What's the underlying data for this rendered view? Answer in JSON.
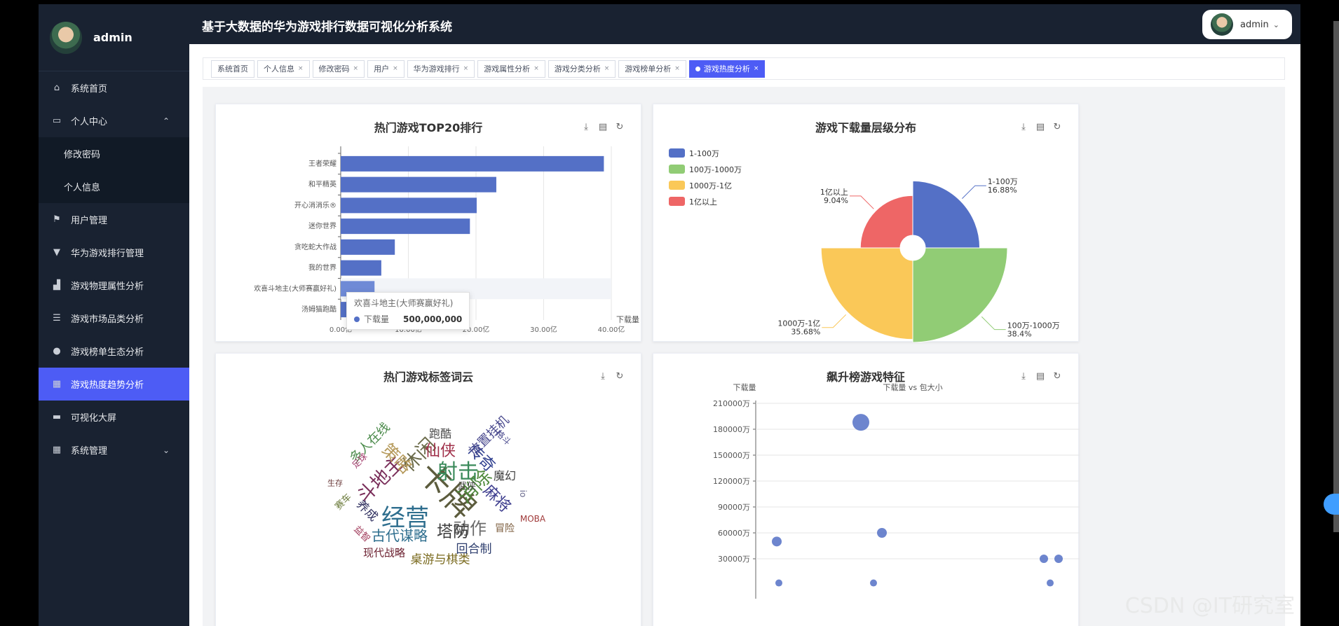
{
  "sidebar": {
    "user": "admin",
    "items": [
      {
        "label": "系统首页",
        "icon": "home-icon",
        "glyph": "⌂"
      },
      {
        "label": "个人中心",
        "icon": "folder-icon",
        "glyph": "▭",
        "arrow": "⌃"
      },
      {
        "label": "修改密码",
        "sub": true
      },
      {
        "label": "个人信息",
        "sub": true
      },
      {
        "label": "用户管理",
        "icon": "flag-icon",
        "glyph": "⚑"
      },
      {
        "label": "华为游戏排行管理",
        "icon": "stamp-icon",
        "glyph": "▼"
      },
      {
        "label": "游戏物理属性分析",
        "icon": "thumb-icon",
        "glyph": "▟"
      },
      {
        "label": "游戏市场品类分析",
        "icon": "list-icon",
        "glyph": "☰"
      },
      {
        "label": "游戏榜单生态分析",
        "icon": "user-icon",
        "glyph": "●"
      },
      {
        "label": "游戏热度趋势分析",
        "icon": "grid-icon",
        "glyph": "▦",
        "active": true
      },
      {
        "label": "可视化大屏",
        "icon": "screen-icon",
        "glyph": "▬"
      },
      {
        "label": "系统管理",
        "icon": "grid-icon",
        "glyph": "▦",
        "arrow": "⌄"
      }
    ]
  },
  "header": {
    "title": "基于大数据的华为游戏排行数据可视化分析系统",
    "user": "admin",
    "arrow": "⌄"
  },
  "tabs": [
    {
      "label": "系统首页",
      "close": ""
    },
    {
      "label": "个人信息",
      "close": "×"
    },
    {
      "label": "修改密码",
      "close": "×"
    },
    {
      "label": "用户",
      "close": "×"
    },
    {
      "label": "华为游戏排行",
      "close": "×"
    },
    {
      "label": "游戏属性分析",
      "close": "×"
    },
    {
      "label": "游戏分类分析",
      "close": "×"
    },
    {
      "label": "游戏榜单分析",
      "close": "×"
    },
    {
      "label": "游戏热度分析",
      "close": "×",
      "active": true
    }
  ],
  "tools": {
    "download": "⤓",
    "data": "▤",
    "refresh": "↻"
  },
  "watermark": "CSDN @IT研究室",
  "charts": {
    "top20": {
      "title": "热门游戏TOP20排行",
      "axis_name": "下载量",
      "tooltip": {
        "title": "欢喜斗地主(大师赛赢好礼)",
        "series": "下载量",
        "value": "500,000,000"
      }
    },
    "pie": {
      "title": "游戏下载量层级分布"
    },
    "wordcloud": {
      "title": "热门游戏标签词云"
    },
    "scatter": {
      "title": "飙升榜游戏特征",
      "yname": "下载量",
      "subtitle": "下载量 vs 包大小"
    }
  },
  "chart_data": [
    {
      "type": "bar",
      "orientation": "horizontal",
      "title": "热门游戏TOP20排行",
      "categories": [
        "王者荣耀",
        "和平精英",
        "开心消消乐®",
        "迷你世界",
        "贪吃蛇大作战",
        "我的世界",
        "欢喜斗地主(大师赛赢好礼)",
        "汤姆猫跑酷"
      ],
      "values": [
        38.9,
        23.0,
        20.1,
        19.1,
        8.0,
        6.0,
        5.0,
        4.0
      ],
      "xlabel": "下载量",
      "xticks": [
        "0.00亿",
        "10.00亿",
        "20.00亿",
        "30.00亿",
        "40.00亿"
      ],
      "xlim": [
        0,
        40
      ],
      "highlight": "欢喜斗地主(大师赛赢好礼)",
      "color": "#5470c6"
    },
    {
      "type": "pie",
      "rose": true,
      "title": "游戏下载量层级分布",
      "legend": "top-left",
      "slices": [
        {
          "name": "1-100万",
          "value": 16.88,
          "label": "16.88%",
          "color": "#5470c6"
        },
        {
          "name": "100万-1000万",
          "value": 38.4,
          "label": "38.4%",
          "color": "#91cc75"
        },
        {
          "name": "1000万-1亿",
          "value": 35.68,
          "label": "35.68%",
          "color": "#fac858"
        },
        {
          "name": "1亿以上",
          "value": 9.04,
          "label": "9.04%",
          "color": "#ee6666"
        }
      ]
    },
    {
      "type": "wordcloud",
      "title": "热门游戏标签词云",
      "words": [
        {
          "text": "卡牌",
          "color": "#5c5c3d",
          "size": 46,
          "rot": 45
        },
        {
          "text": "经营",
          "color": "#2e6e8e",
          "size": 34,
          "rot": 0
        },
        {
          "text": "射击",
          "color": "#3a8a5a",
          "size": 30,
          "rot": 0
        },
        {
          "text": "休闲",
          "color": "#6b6b4a",
          "size": 27,
          "rot": -45
        },
        {
          "text": "消除",
          "color": "#4f8a3d",
          "size": 27,
          "rot": -45
        },
        {
          "text": "斗地主",
          "color": "#7a2e5a",
          "size": 27,
          "rot": -45
        },
        {
          "text": "策略",
          "color": "#b5995a",
          "size": 24,
          "rot": 45
        },
        {
          "text": "仙侠",
          "color": "#a0304a",
          "size": 22,
          "rot": 0
        },
        {
          "text": "传奇",
          "color": "#2e3e8e",
          "size": 22,
          "rot": 45
        },
        {
          "text": "麻将",
          "color": "#3d3d8e",
          "size": 22,
          "rot": 45
        },
        {
          "text": "动作",
          "color": "#6b6b6b",
          "size": 24,
          "rot": 0
        },
        {
          "text": "塔防",
          "color": "#3d3d3d",
          "size": 23,
          "rot": 0
        },
        {
          "text": "古代谋略",
          "color": "#2e6e8e",
          "size": 20,
          "rot": 0
        },
        {
          "text": "多人在线",
          "color": "#4a8a4a",
          "size": 18,
          "rot": -45
        },
        {
          "text": "放置挂机",
          "color": "#4a4a8e",
          "size": 18,
          "rot": -45
        },
        {
          "text": "跑酷",
          "color": "#4a4a4a",
          "size": 16,
          "rot": 0
        },
        {
          "text": "魔幻",
          "color": "#3d3d3d",
          "size": 16,
          "rot": 0
        },
        {
          "text": "回合制",
          "color": "#2e3e6e",
          "size": 17,
          "rot": 0
        },
        {
          "text": "桌游与棋类",
          "color": "#7a6a1e",
          "size": 17,
          "rot": 0
        },
        {
          "text": "现代战略",
          "color": "#6a1e2e",
          "size": 15,
          "rot": 0
        },
        {
          "text": "养成",
          "color": "#2e2e5e",
          "size": 17,
          "rot": 45
        },
        {
          "text": "冒险",
          "color": "#7a5a3a",
          "size": 14,
          "rot": 0
        },
        {
          "text": "MOBA",
          "color": "#a03a3a",
          "size": 12,
          "rot": 0
        },
        {
          "text": "武侠",
          "color": "#4a4a4a",
          "size": 13,
          "rot": 0
        },
        {
          "text": "足球",
          "color": "#a03a6a",
          "size": 12,
          "rot": -45
        },
        {
          "text": "格斗",
          "color": "#4a4a8e",
          "size": 12,
          "rot": 45
        },
        {
          "text": "赛车",
          "color": "#6a7a3a",
          "size": 13,
          "rot": -45
        },
        {
          "text": "生存",
          "color": "#6a3a3a",
          "size": 11,
          "rot": 0
        },
        {
          "text": "益智",
          "color": "#a03a5a",
          "size": 13,
          "rot": 45
        },
        {
          "text": "io",
          "color": "#6a6a8e",
          "size": 12,
          "rot": 90
        }
      ]
    },
    {
      "type": "scatter",
      "title": "飙升榜游戏特征",
      "ylabel": "下载量",
      "subtitle": "下载量 vs 包大小",
      "yticks": [
        "30000万",
        "60000万",
        "90000万",
        "120000万",
        "150000万",
        "180000万",
        "210000万"
      ],
      "ylim": [
        0,
        210000
      ],
      "color": "#5470c6",
      "points": [
        {
          "x": 5,
          "y": 188000,
          "r": 12
        },
        {
          "x": 1,
          "y": 50000,
          "r": 7
        },
        {
          "x": 6,
          "y": 60000,
          "r": 7
        },
        {
          "x": 1.1,
          "y": 2000,
          "r": 5
        },
        {
          "x": 5.6,
          "y": 2000,
          "r": 5
        },
        {
          "x": 13.7,
          "y": 30000,
          "r": 6
        },
        {
          "x": 14.4,
          "y": 30000,
          "r": 6
        },
        {
          "x": 14,
          "y": 2000,
          "r": 5
        }
      ]
    }
  ]
}
